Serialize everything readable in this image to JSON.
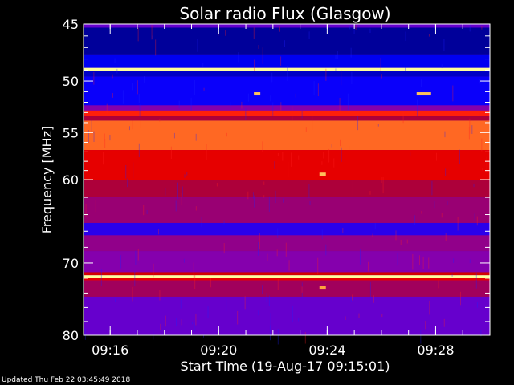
{
  "chart_data": {
    "type": "heatmap",
    "title": "Solar radio Flux (Glasgow)",
    "ylabel": "Frequency [MHz]",
    "xlabel": "Start Time (19-Aug-17 09:15:01)",
    "y_scale": "log",
    "y_range_mhz": [
      45,
      80
    ],
    "y_ticks": [
      45,
      50,
      55,
      60,
      70,
      80
    ],
    "y_tick_labels": [
      "45",
      "50",
      "55",
      "60",
      "70",
      "80"
    ],
    "x_range": [
      "09:15:01",
      "09:30:00"
    ],
    "x_ticks": [
      "09:16",
      "09:20",
      "09:24",
      "09:28"
    ],
    "colormap": [
      "#00006e",
      "#0000ff",
      "#7f00c0",
      "#c00000",
      "#ff0000",
      "#ff9933",
      "#ffff99"
    ],
    "frequency_bands_mhz": [
      {
        "from": 45.0,
        "to": 45.3,
        "level": 0.3
      },
      {
        "from": 45.3,
        "to": 47.6,
        "level": 0.05
      },
      {
        "from": 47.6,
        "to": 48.8,
        "level": 0.15
      },
      {
        "from": 48.8,
        "to": 49.1,
        "level": 1.0
      },
      {
        "from": 49.1,
        "to": 49.6,
        "level": 0.1
      },
      {
        "from": 49.6,
        "to": 52.3,
        "level": 0.18
      },
      {
        "from": 52.3,
        "to": 52.8,
        "level": 0.35
      },
      {
        "from": 52.8,
        "to": 53.3,
        "level": 0.7
      },
      {
        "from": 53.3,
        "to": 53.8,
        "level": 0.45
      },
      {
        "from": 53.8,
        "to": 56.8,
        "level": 0.78
      },
      {
        "from": 56.8,
        "to": 60.0,
        "level": 0.6
      },
      {
        "from": 60.0,
        "to": 62.0,
        "level": 0.45
      },
      {
        "from": 62.0,
        "to": 65.0,
        "level": 0.4
      },
      {
        "from": 65.0,
        "to": 66.5,
        "level": 0.22
      },
      {
        "from": 66.5,
        "to": 68.5,
        "level": 0.38
      },
      {
        "from": 68.5,
        "to": 71.2,
        "level": 0.35
      },
      {
        "from": 71.2,
        "to": 71.6,
        "level": 0.55
      },
      {
        "from": 71.6,
        "to": 71.9,
        "level": 1.0
      },
      {
        "from": 71.9,
        "to": 72.3,
        "level": 0.6
      },
      {
        "from": 72.3,
        "to": 74.5,
        "level": 0.42
      },
      {
        "from": 74.5,
        "to": 80.0,
        "level": 0.3
      }
    ],
    "bursts": [
      {
        "time": "09:21:25",
        "freq_mhz": 51.2,
        "level": 0.9
      },
      {
        "time": "09:27:25",
        "freq_mhz": 51.2,
        "level": 0.9
      },
      {
        "time": "09:23:50",
        "freq_mhz": 59.4,
        "level": 0.9
      },
      {
        "time": "09:23:50",
        "freq_mhz": 73.2,
        "level": 0.85
      }
    ]
  },
  "footer": {
    "updated": "Updated Thu Feb 22 03:45:49 2018"
  }
}
